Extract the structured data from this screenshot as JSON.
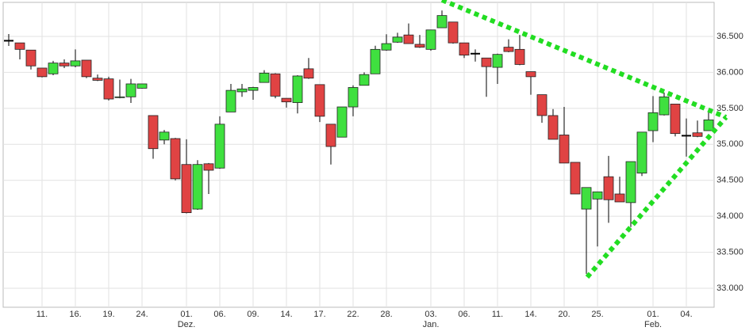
{
  "chart_data": {
    "type": "candlestick",
    "categories": [
      null,
      null,
      null,
      "11.",
      null,
      null,
      "16.",
      null,
      null,
      "19.",
      null,
      null,
      "24.",
      null,
      null,
      null,
      "01.",
      null,
      null,
      "06.",
      null,
      null,
      "09.",
      null,
      null,
      "14.",
      null,
      null,
      "17.",
      null,
      null,
      "22.",
      null,
      null,
      "28.",
      null,
      null,
      null,
      "03.",
      null,
      null,
      "06.",
      null,
      null,
      "11.",
      null,
      null,
      "14.",
      null,
      null,
      "20.",
      null,
      null,
      "25.",
      null,
      null,
      null,
      null,
      "01.",
      null,
      null,
      "04.",
      null,
      null
    ],
    "category_months": [
      null,
      null,
      null,
      null,
      null,
      null,
      null,
      null,
      null,
      null,
      null,
      null,
      null,
      null,
      null,
      null,
      "Dez.",
      null,
      null,
      null,
      null,
      null,
      null,
      null,
      null,
      null,
      null,
      null,
      null,
      null,
      null,
      null,
      null,
      null,
      null,
      null,
      null,
      null,
      "Jan.",
      null,
      null,
      null,
      null,
      null,
      null,
      null,
      null,
      null,
      null,
      null,
      null,
      null,
      null,
      null,
      null,
      null,
      null,
      null,
      "Feb.",
      null,
      null,
      null,
      null,
      null
    ],
    "open": [
      36440,
      36410,
      36310,
      36060,
      35980,
      36130,
      36090,
      36170,
      35920,
      35910,
      35650,
      35660,
      35780,
      35400,
      35060,
      35080,
      34720,
      34100,
      34730,
      34670,
      35450,
      35730,
      35750,
      35860,
      35980,
      35640,
      35580,
      36050,
      35830,
      35280,
      35100,
      35520,
      35820,
      35980,
      36310,
      36420,
      36520,
      36390,
      36320,
      36620,
      36700,
      36410,
      36260,
      36200,
      36070,
      36350,
      36320,
      36010,
      35690,
      35400,
      35130,
      34750,
      34100,
      34240,
      34550,
      34310,
      34190,
      34600,
      35190,
      35410,
      35560,
      35120,
      35160,
      35190
    ],
    "high": [
      36533,
      36410,
      36310,
      36060,
      36160,
      36180,
      36320,
      36170,
      35970,
      35940,
      35900,
      35910,
      35840,
      35400,
      35200,
      35090,
      35070,
      34780,
      34740,
      35390,
      35840,
      35840,
      35800,
      36030,
      35990,
      35640,
      35960,
      36200,
      35830,
      35280,
      35520,
      35820,
      36000,
      36370,
      36530,
      36550,
      36680,
      36520,
      36590,
      36860,
      36700,
      36410,
      36320,
      36200,
      36260,
      36460,
      36520,
      36010,
      35690,
      35490,
      35520,
      34750,
      34400,
      34340,
      34840,
      34550,
      34760,
      35170,
      35670,
      35720,
      35560,
      35360,
      35330,
      35450
    ],
    "low": [
      36368,
      36180,
      36040,
      35930,
      35960,
      36060,
      36070,
      35920,
      35880,
      35610,
      35640,
      35575,
      35775,
      34800,
      35000,
      34500,
      34040,
      34090,
      34310,
      34660,
      35450,
      35660,
      35620,
      35860,
      35640,
      35510,
      35430,
      35910,
      35310,
      34720,
      35100,
      35390,
      35820,
      35980,
      36300,
      36410,
      36400,
      36340,
      36300,
      36620,
      36400,
      36200,
      36150,
      35660,
      35840,
      36280,
      36100,
      35690,
      35300,
      35070,
      34740,
      34310,
      33200,
      33580,
      33910,
      34200,
      33850,
      34560,
      35030,
      35400,
      35110,
      34830,
      35100,
      35190
    ],
    "close": [
      36440,
      36320,
      36090,
      35940,
      36130,
      36090,
      36160,
      35940,
      35890,
      35630,
      35660,
      35840,
      35840,
      34940,
      35170,
      34520,
      34050,
      34720,
      34640,
      35280,
      35750,
      35770,
      35790,
      35990,
      35670,
      35590,
      35950,
      35920,
      35390,
      34970,
      35520,
      35790,
      35970,
      36320,
      36400,
      36490,
      36400,
      36350,
      36590,
      36790,
      36410,
      36240,
      36260,
      36080,
      36250,
      36290,
      36110,
      35940,
      35400,
      35070,
      34740,
      34310,
      34400,
      34340,
      34230,
      34200,
      34760,
      35170,
      35440,
      35660,
      35150,
      35120,
      35110,
      35340
    ],
    "up_color": "#3fe03f",
    "down_color": "#e04343",
    "ylim": [
      32736,
      36973
    ],
    "yticks": [
      {
        "value": 33000,
        "label": "33.000"
      },
      {
        "value": 33500,
        "label": "33.500"
      },
      {
        "value": 34000,
        "label": "34.000"
      },
      {
        "value": 34500,
        "label": "34.500"
      },
      {
        "value": 35000,
        "label": "35.000"
      },
      {
        "value": 35500,
        "label": "35.500"
      },
      {
        "value": 36000,
        "label": "36.000"
      },
      {
        "value": 36500,
        "label": "36.500"
      }
    ],
    "grid": true
  }
}
